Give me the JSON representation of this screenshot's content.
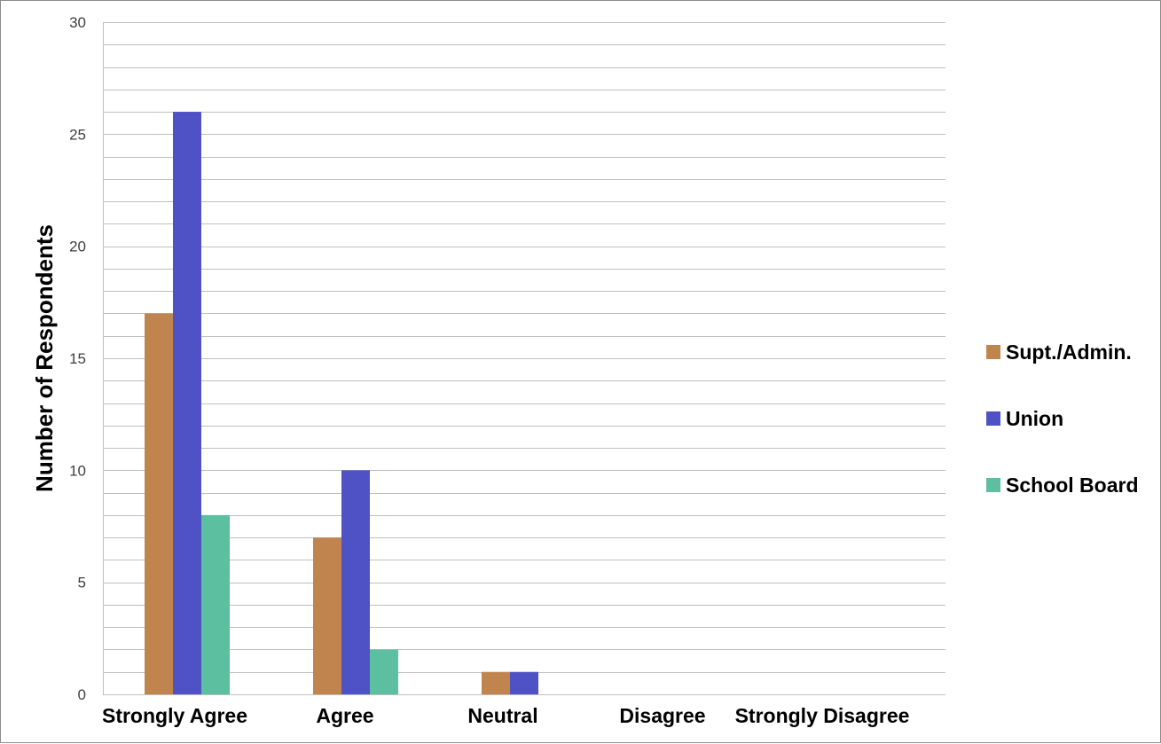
{
  "chart_data": {
    "type": "bar",
    "title": "",
    "xlabel": "",
    "ylabel": "Number of Respondents",
    "ylim": [
      0,
      30
    ],
    "major_ticks": [
      0,
      5,
      10,
      15,
      20,
      25,
      30
    ],
    "minor_step": 1,
    "grid": true,
    "legend_position": "right",
    "categories": [
      "Strongly Agree",
      "Agree",
      "Neutral",
      "Disagree",
      "Strongly Disagree"
    ],
    "series": [
      {
        "name": "Supt./Admin.",
        "color": "#c0854f",
        "values": [
          17,
          7,
          1,
          0,
          0
        ]
      },
      {
        "name": "Union",
        "color": "#4f52c4",
        "values": [
          26,
          10,
          1,
          0,
          0
        ]
      },
      {
        "name": "School Board",
        "color": "#5bbfa0",
        "values": [
          8,
          2,
          0,
          0,
          0
        ]
      }
    ]
  }
}
